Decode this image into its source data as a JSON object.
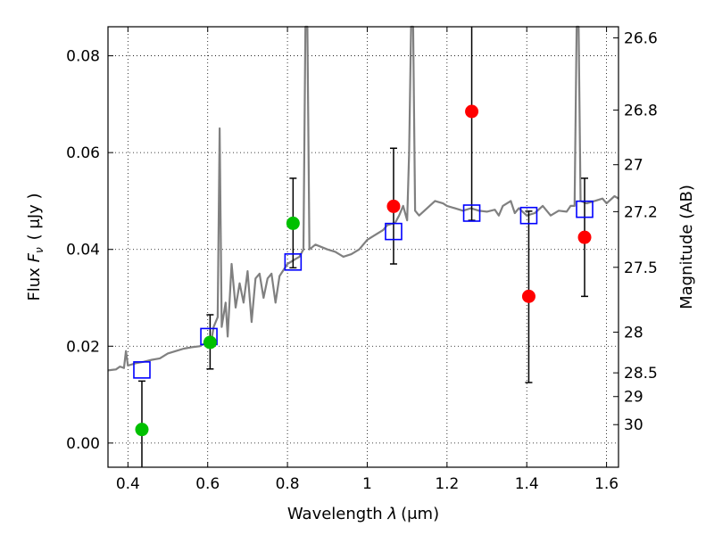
{
  "chart_data": {
    "type": "scatter",
    "xlabel_main": "Wavelength  ",
    "xlabel_math": "λ",
    "xlabel_unit": "(μm)",
    "ylabel_main": "Flux  ",
    "ylabel_math": "F",
    "ylabel_sub": "ν",
    "ylabel_unit": "( μJy )",
    "y2label": "Magnitude (AB)",
    "xlim": [
      0.35,
      1.63
    ],
    "ylim": [
      -0.005,
      0.086
    ],
    "grid": true,
    "xticks": [
      0.4,
      0.6,
      0.8,
      1.0,
      1.2,
      1.4,
      1.6
    ],
    "xtick_labels": [
      "0.4",
      "0.6",
      "0.8",
      "1",
      "1.2",
      "1.4",
      "1.6"
    ],
    "yticks": [
      0.0,
      0.02,
      0.04,
      0.06,
      0.08
    ],
    "ytick_labels": [
      "0.00",
      "0.02",
      "0.04",
      "0.06",
      "0.08"
    ],
    "y2ticks": [
      {
        "label": "26.6",
        "flux": 0.0837
      },
      {
        "label": "26.8",
        "flux": 0.0688
      },
      {
        "label": "27",
        "flux": 0.0575
      },
      {
        "label": "27.2",
        "flux": 0.0478
      },
      {
        "label": "27.5",
        "flux": 0.0363
      },
      {
        "label": "28",
        "flux": 0.0229
      },
      {
        "label": "28.5",
        "flux": 0.0145
      },
      {
        "label": "29",
        "flux": 0.0096
      },
      {
        "label": "30",
        "flux": 0.0038
      }
    ],
    "spectrum_color": "#808080",
    "spectrum": [
      [
        0.35,
        0.015
      ],
      [
        0.37,
        0.0152
      ],
      [
        0.38,
        0.0158
      ],
      [
        0.39,
        0.0155
      ],
      [
        0.395,
        0.019
      ],
      [
        0.4,
        0.016
      ],
      [
        0.42,
        0.0165
      ],
      [
        0.44,
        0.0168
      ],
      [
        0.46,
        0.0172
      ],
      [
        0.48,
        0.0175
      ],
      [
        0.5,
        0.0185
      ],
      [
        0.52,
        0.019
      ],
      [
        0.54,
        0.0195
      ],
      [
        0.56,
        0.0198
      ],
      [
        0.58,
        0.02
      ],
      [
        0.6,
        0.021
      ],
      [
        0.61,
        0.0215
      ],
      [
        0.615,
        0.024
      ],
      [
        0.625,
        0.026
      ],
      [
        0.63,
        0.065
      ],
      [
        0.635,
        0.024
      ],
      [
        0.645,
        0.029
      ],
      [
        0.65,
        0.022
      ],
      [
        0.66,
        0.037
      ],
      [
        0.67,
        0.028
      ],
      [
        0.68,
        0.033
      ],
      [
        0.69,
        0.029
      ],
      [
        0.7,
        0.0355
      ],
      [
        0.71,
        0.025
      ],
      [
        0.72,
        0.034
      ],
      [
        0.73,
        0.035
      ],
      [
        0.74,
        0.03
      ],
      [
        0.75,
        0.034
      ],
      [
        0.76,
        0.035
      ],
      [
        0.77,
        0.029
      ],
      [
        0.78,
        0.0345
      ],
      [
        0.8,
        0.037
      ],
      [
        0.82,
        0.038
      ],
      [
        0.83,
        0.0385
      ],
      [
        0.84,
        0.04
      ],
      [
        0.845,
        0.086
      ],
      [
        0.85,
        0.086
      ],
      [
        0.855,
        0.04
      ],
      [
        0.87,
        0.041
      ],
      [
        0.9,
        0.04
      ],
      [
        0.92,
        0.0395
      ],
      [
        0.94,
        0.0385
      ],
      [
        0.96,
        0.039
      ],
      [
        0.98,
        0.04
      ],
      [
        1.0,
        0.042
      ],
      [
        1.02,
        0.043
      ],
      [
        1.04,
        0.044
      ],
      [
        1.05,
        0.045
      ],
      [
        1.07,
        0.0455
      ],
      [
        1.08,
        0.047
      ],
      [
        1.09,
        0.049
      ],
      [
        1.1,
        0.046
      ],
      [
        1.105,
        0.06
      ],
      [
        1.11,
        0.086
      ],
      [
        1.115,
        0.086
      ],
      [
        1.12,
        0.048
      ],
      [
        1.13,
        0.047
      ],
      [
        1.15,
        0.0485
      ],
      [
        1.17,
        0.05
      ],
      [
        1.19,
        0.0495
      ],
      [
        1.2,
        0.049
      ],
      [
        1.22,
        0.0485
      ],
      [
        1.24,
        0.048
      ],
      [
        1.26,
        0.0485
      ],
      [
        1.28,
        0.048
      ],
      [
        1.3,
        0.0478
      ],
      [
        1.32,
        0.0482
      ],
      [
        1.33,
        0.047
      ],
      [
        1.34,
        0.049
      ],
      [
        1.36,
        0.05
      ],
      [
        1.37,
        0.0475
      ],
      [
        1.38,
        0.0485
      ],
      [
        1.4,
        0.047
      ],
      [
        1.42,
        0.0475
      ],
      [
        1.44,
        0.049
      ],
      [
        1.46,
        0.047
      ],
      [
        1.48,
        0.048
      ],
      [
        1.5,
        0.0478
      ],
      [
        1.51,
        0.049
      ],
      [
        1.52,
        0.049
      ],
      [
        1.525,
        0.086
      ],
      [
        1.53,
        0.086
      ],
      [
        1.535,
        0.05
      ],
      [
        1.55,
        0.0495
      ],
      [
        1.57,
        0.05
      ],
      [
        1.59,
        0.0505
      ],
      [
        1.6,
        0.0495
      ],
      [
        1.62,
        0.051
      ],
      [
        1.63,
        0.0505
      ]
    ],
    "model_points": {
      "color": "#0000ff",
      "points": [
        {
          "x": 0.435,
          "y": 0.0151
        },
        {
          "x": 0.603,
          "y": 0.022
        },
        {
          "x": 0.814,
          "y": 0.0374
        },
        {
          "x": 1.066,
          "y": 0.0437
        },
        {
          "x": 1.262,
          "y": 0.0475
        },
        {
          "x": 1.405,
          "y": 0.047
        },
        {
          "x": 1.545,
          "y": 0.0483
        }
      ]
    },
    "detections": {
      "color": "#00c000",
      "points": [
        {
          "x": 0.435,
          "y": 0.0028,
          "err_lo": 0.01,
          "err_hi": 0.01
        },
        {
          "x": 0.606,
          "y": 0.0208,
          "err_lo": 0.0055,
          "err_hi": 0.0057
        },
        {
          "x": 0.814,
          "y": 0.0454,
          "err_lo": 0.0092,
          "err_hi": 0.0093
        }
      ]
    },
    "nondetections": {
      "color": "#ff0000",
      "points": [
        {
          "x": 1.066,
          "y": 0.0489,
          "err_lo": 0.0119,
          "err_hi": 0.012
        },
        {
          "x": 1.262,
          "y": 0.0685,
          "err_lo": 0.0225,
          "err_hi": 0.03
        },
        {
          "x": 1.405,
          "y": 0.0303,
          "err_lo": 0.0178,
          "err_hi": 0.0176
        },
        {
          "x": 1.545,
          "y": 0.0425,
          "err_lo": 0.0122,
          "err_hi": 0.0122
        }
      ]
    }
  }
}
